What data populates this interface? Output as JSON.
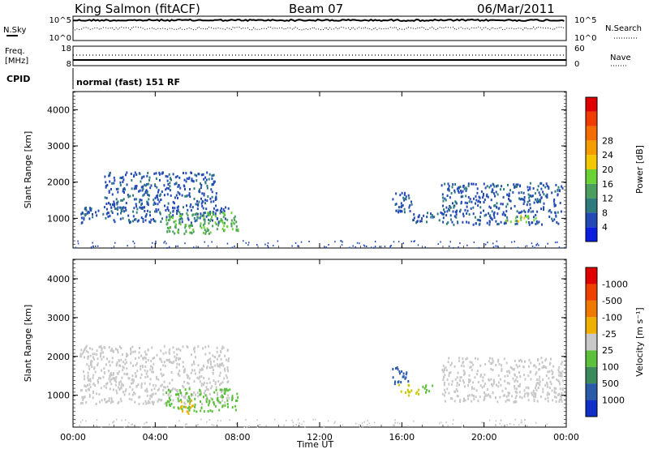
{
  "header": {
    "station": "King Salmon (fitACF)",
    "beam": "Beam 07",
    "date": "06/Mar/2011"
  },
  "meta_panels": {
    "nsky_label": "N.Sky",
    "nsearch_label": "N.Search",
    "nsky_ticks": [
      "10^5",
      "10^0"
    ],
    "nsearch_ticks": [
      "10^5",
      "10^0"
    ],
    "freq_label": "Freq.",
    "freq_unit": "[MHz]",
    "freq_ticks": [
      "18",
      "8"
    ],
    "nave_label": "Nave",
    "nave_ticks": [
      "60",
      "0"
    ],
    "cpid_label": "CPID",
    "cpid_value": "normal (fast) 151 RF"
  },
  "chart_data": [
    {
      "type": "heatmap",
      "name": "power",
      "ylabel": "Slant Range [km]",
      "xlabel": "",
      "ylim": [
        180,
        4500
      ],
      "yticks": [
        1000,
        2000,
        3000,
        4000
      ],
      "colorbar_label": "Power [dB]",
      "colorbar_ticks": [
        "4",
        "8",
        "12",
        "16",
        "20",
        "24",
        "28"
      ],
      "colorbar_colors": [
        "#0b1ee0",
        "#234ab4",
        "#2f7a7d",
        "#4c9e5e",
        "#6bd235",
        "#f4c800",
        "#f59d00",
        "#f36d00",
        "#f03c00",
        "#e00000"
      ],
      "regions": [
        {
          "t0": 0.3,
          "t1": 7.6,
          "r0": 900,
          "r1": 1350,
          "level": 1
        },
        {
          "t0": 1.5,
          "t1": 7.0,
          "r0": 1300,
          "r1": 2300,
          "level": 1
        },
        {
          "t0": 4.5,
          "t1": 8.0,
          "r0": 600,
          "r1": 1200,
          "level": 3
        },
        {
          "t0": 15.5,
          "t1": 16.5,
          "r0": 1200,
          "r1": 1750,
          "level": 1
        },
        {
          "t0": 16.5,
          "t1": 18.0,
          "r0": 900,
          "r1": 1200,
          "level": 1
        },
        {
          "t0": 17.9,
          "t1": 23.8,
          "r0": 850,
          "r1": 2000,
          "level": 1
        },
        {
          "t0": 21.0,
          "t1": 22.5,
          "r0": 900,
          "r1": 1100,
          "level": 4
        }
      ]
    },
    {
      "type": "heatmap",
      "name": "velocity",
      "ylabel": "Slant Range [km]",
      "xlabel": "Time UT",
      "ylim": [
        180,
        4500
      ],
      "yticks": [
        1000,
        2000,
        3000,
        4000
      ],
      "xticks": [
        "00:00",
        "04:00",
        "08:00",
        "12:00",
        "16:00",
        "20:00",
        "00:00"
      ],
      "colorbar_label": "Velocity [m s⁻¹]",
      "colorbar_ticks": [
        "1000",
        "500",
        "100",
        "25",
        "-25",
        "-100",
        "-500",
        "-1000"
      ],
      "colorbar_colors": [
        "#1030c8",
        "#2a5aa8",
        "#3c8a5c",
        "#5cc03c",
        "#c8c8c8",
        "#f0b000",
        "#f07a00",
        "#f04000",
        "#e00000"
      ],
      "regions": [
        {
          "t0": 0.3,
          "t1": 7.6,
          "r0": 800,
          "r1": 2300,
          "color": "#c8c8c8"
        },
        {
          "t0": 4.5,
          "t1": 8.0,
          "r0": 600,
          "r1": 1200,
          "color": "#5cc03c"
        },
        {
          "t0": 5.2,
          "t1": 5.8,
          "r0": 550,
          "r1": 900,
          "color": "#f0b000"
        },
        {
          "t0": 15.5,
          "t1": 16.3,
          "r0": 1300,
          "r1": 1750,
          "color": "#2a5aa8"
        },
        {
          "t0": 15.8,
          "t1": 16.8,
          "r0": 1000,
          "r1": 1300,
          "color": "#c8c800"
        },
        {
          "t0": 16.8,
          "t1": 17.5,
          "r0": 1100,
          "r1": 1300,
          "color": "#5cc03c"
        },
        {
          "t0": 17.9,
          "t1": 23.8,
          "r0": 850,
          "r1": 2000,
          "color": "#c8c8c8"
        }
      ]
    }
  ]
}
